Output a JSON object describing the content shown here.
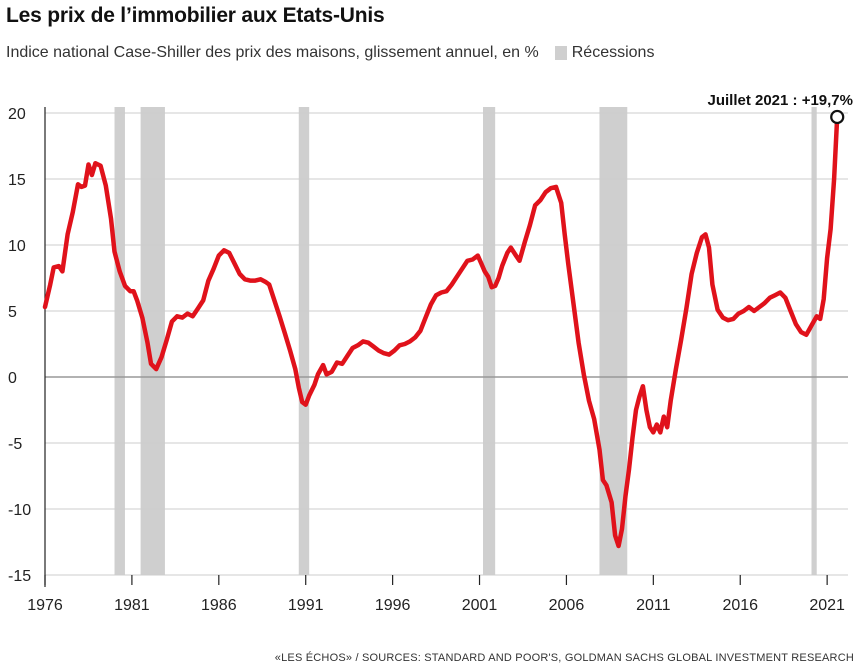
{
  "title": "Les prix de l’immobilier aux Etats-Unis",
  "subtitle": "Indice national Case-Shiller des prix des maisons, glissement annuel, en %",
  "legend_recessions": "Récessions",
  "annotation": "Juillet 2021 : +19,7%",
  "source": "«LES ÉCHOS» / SOURCES: STANDARD AND POOR'S, GOLDMAN SACHS GLOBAL INVESTMENT RESEARCH",
  "colors": {
    "line": "#e0121b",
    "recession": "#cfcfcf",
    "grid": "#cccccc",
    "zero": "#999999"
  },
  "chart_data": {
    "type": "line",
    "xlim": [
      1976,
      2022.2
    ],
    "ylim": [
      -15,
      20
    ],
    "yticks": [
      20,
      15,
      10,
      5,
      0,
      -5,
      -10,
      -15
    ],
    "xticks": [
      1976,
      1981,
      1986,
      1991,
      1996,
      2001,
      2006,
      2011,
      2016,
      2021
    ],
    "recessions": [
      [
        1980.0,
        1980.6
      ],
      [
        1981.5,
        1982.9
      ],
      [
        1990.6,
        1991.2
      ],
      [
        2001.2,
        2001.9
      ],
      [
        2007.9,
        2009.5
      ],
      [
        2020.1,
        2020.4
      ]
    ],
    "series": [
      {
        "points": [
          [
            1976.0,
            5.3
          ],
          [
            1976.3,
            7.0
          ],
          [
            1976.5,
            8.3
          ],
          [
            1976.8,
            8.4
          ],
          [
            1977.0,
            8.0
          ],
          [
            1977.3,
            10.8
          ],
          [
            1977.6,
            12.5
          ],
          [
            1977.9,
            14.6
          ],
          [
            1978.1,
            14.4
          ],
          [
            1978.3,
            14.5
          ],
          [
            1978.5,
            16.1
          ],
          [
            1978.7,
            15.3
          ],
          [
            1978.9,
            16.2
          ],
          [
            1979.2,
            16.0
          ],
          [
            1979.5,
            14.5
          ],
          [
            1979.8,
            12.0
          ],
          [
            1980.0,
            9.5
          ],
          [
            1980.3,
            8.0
          ],
          [
            1980.6,
            6.9
          ],
          [
            1980.9,
            6.5
          ],
          [
            1981.1,
            6.5
          ],
          [
            1981.3,
            5.8
          ],
          [
            1981.6,
            4.5
          ],
          [
            1981.9,
            2.6
          ],
          [
            1982.1,
            1.0
          ],
          [
            1982.4,
            0.6
          ],
          [
            1982.7,
            1.5
          ],
          [
            1983.0,
            2.8
          ],
          [
            1983.3,
            4.2
          ],
          [
            1983.6,
            4.6
          ],
          [
            1983.9,
            4.5
          ],
          [
            1984.2,
            4.8
          ],
          [
            1984.5,
            4.6
          ],
          [
            1984.8,
            5.2
          ],
          [
            1985.1,
            5.8
          ],
          [
            1985.4,
            7.3
          ],
          [
            1985.7,
            8.2
          ],
          [
            1986.0,
            9.2
          ],
          [
            1986.3,
            9.6
          ],
          [
            1986.6,
            9.4
          ],
          [
            1986.9,
            8.6
          ],
          [
            1987.2,
            7.8
          ],
          [
            1987.5,
            7.4
          ],
          [
            1987.8,
            7.3
          ],
          [
            1988.1,
            7.3
          ],
          [
            1988.4,
            7.4
          ],
          [
            1988.7,
            7.2
          ],
          [
            1988.9,
            7.0
          ],
          [
            1989.2,
            5.8
          ],
          [
            1989.5,
            4.6
          ],
          [
            1989.8,
            3.3
          ],
          [
            1990.1,
            2.0
          ],
          [
            1990.4,
            0.6
          ],
          [
            1990.6,
            -0.8
          ],
          [
            1990.8,
            -1.9
          ],
          [
            1991.0,
            -2.1
          ],
          [
            1991.2,
            -1.4
          ],
          [
            1991.5,
            -0.6
          ],
          [
            1991.7,
            0.2
          ],
          [
            1992.0,
            0.9
          ],
          [
            1992.2,
            0.2
          ],
          [
            1992.5,
            0.4
          ],
          [
            1992.8,
            1.1
          ],
          [
            1993.1,
            1.0
          ],
          [
            1993.4,
            1.6
          ],
          [
            1993.7,
            2.2
          ],
          [
            1994.0,
            2.4
          ],
          [
            1994.3,
            2.7
          ],
          [
            1994.6,
            2.6
          ],
          [
            1994.9,
            2.3
          ],
          [
            1995.2,
            2.0
          ],
          [
            1995.5,
            1.8
          ],
          [
            1995.8,
            1.7
          ],
          [
            1996.1,
            2.0
          ],
          [
            1996.4,
            2.4
          ],
          [
            1996.7,
            2.5
          ],
          [
            1997.0,
            2.7
          ],
          [
            1997.3,
            3.0
          ],
          [
            1997.6,
            3.5
          ],
          [
            1997.9,
            4.5
          ],
          [
            1998.2,
            5.5
          ],
          [
            1998.5,
            6.2
          ],
          [
            1998.8,
            6.4
          ],
          [
            1999.1,
            6.5
          ],
          [
            1999.4,
            7.0
          ],
          [
            1999.7,
            7.6
          ],
          [
            2000.0,
            8.2
          ],
          [
            2000.3,
            8.8
          ],
          [
            2000.6,
            8.9
          ],
          [
            2000.9,
            9.2
          ],
          [
            2001.1,
            8.6
          ],
          [
            2001.3,
            8.0
          ],
          [
            2001.5,
            7.6
          ],
          [
            2001.7,
            6.8
          ],
          [
            2001.9,
            6.9
          ],
          [
            2002.1,
            7.5
          ],
          [
            2002.3,
            8.4
          ],
          [
            2002.6,
            9.4
          ],
          [
            2002.8,
            9.8
          ],
          [
            2003.1,
            9.2
          ],
          [
            2003.3,
            8.8
          ],
          [
            2003.6,
            10.2
          ],
          [
            2003.9,
            11.5
          ],
          [
            2004.2,
            13.0
          ],
          [
            2004.5,
            13.4
          ],
          [
            2004.8,
            14.0
          ],
          [
            2005.1,
            14.3
          ],
          [
            2005.4,
            14.4
          ],
          [
            2005.7,
            13.2
          ],
          [
            2005.9,
            10.8
          ],
          [
            2006.1,
            8.6
          ],
          [
            2006.4,
            5.6
          ],
          [
            2006.7,
            2.6
          ],
          [
            2007.0,
            0.2
          ],
          [
            2007.3,
            -1.8
          ],
          [
            2007.6,
            -3.2
          ],
          [
            2007.9,
            -5.5
          ],
          [
            2008.1,
            -7.8
          ],
          [
            2008.3,
            -8.2
          ],
          [
            2008.6,
            -9.5
          ],
          [
            2008.8,
            -12.0
          ],
          [
            2009.0,
            -12.8
          ],
          [
            2009.2,
            -11.5
          ],
          [
            2009.4,
            -9.0
          ],
          [
            2009.6,
            -7.0
          ],
          [
            2009.8,
            -4.6
          ],
          [
            2010.0,
            -2.5
          ],
          [
            2010.2,
            -1.5
          ],
          [
            2010.4,
            -0.7
          ],
          [
            2010.6,
            -2.5
          ],
          [
            2010.8,
            -3.8
          ],
          [
            2011.0,
            -4.2
          ],
          [
            2011.2,
            -3.6
          ],
          [
            2011.4,
            -4.2
          ],
          [
            2011.6,
            -3.0
          ],
          [
            2011.8,
            -3.8
          ],
          [
            2012.0,
            -1.8
          ],
          [
            2012.3,
            0.6
          ],
          [
            2012.6,
            2.8
          ],
          [
            2012.9,
            5.2
          ],
          [
            2013.2,
            7.8
          ],
          [
            2013.5,
            9.4
          ],
          [
            2013.8,
            10.6
          ],
          [
            2014.0,
            10.8
          ],
          [
            2014.2,
            9.8
          ],
          [
            2014.4,
            7.0
          ],
          [
            2014.7,
            5.1
          ],
          [
            2015.0,
            4.5
          ],
          [
            2015.3,
            4.3
          ],
          [
            2015.6,
            4.4
          ],
          [
            2015.9,
            4.8
          ],
          [
            2016.2,
            5.0
          ],
          [
            2016.5,
            5.3
          ],
          [
            2016.8,
            5.0
          ],
          [
            2017.1,
            5.3
          ],
          [
            2017.4,
            5.6
          ],
          [
            2017.7,
            6.0
          ],
          [
            2018.0,
            6.2
          ],
          [
            2018.3,
            6.4
          ],
          [
            2018.6,
            6.0
          ],
          [
            2018.9,
            5.0
          ],
          [
            2019.2,
            4.0
          ],
          [
            2019.5,
            3.4
          ],
          [
            2019.8,
            3.2
          ],
          [
            2020.1,
            3.9
          ],
          [
            2020.4,
            4.6
          ],
          [
            2020.6,
            4.4
          ],
          [
            2020.8,
            5.9
          ],
          [
            2021.0,
            9.0
          ],
          [
            2021.2,
            11.2
          ],
          [
            2021.4,
            15.0
          ],
          [
            2021.58,
            19.7
          ]
        ]
      }
    ]
  }
}
